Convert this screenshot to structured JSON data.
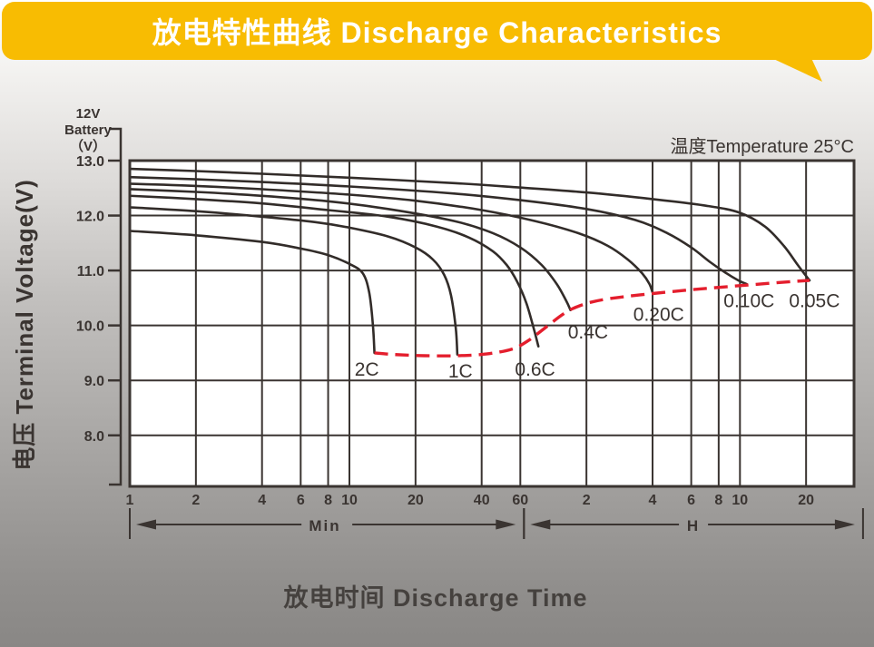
{
  "banner": {
    "title": "放电特性曲线 Discharge Characteristics",
    "color": "#F8BC02",
    "text_color": "#FFFFFF"
  },
  "chart_data": {
    "type": "line",
    "title": "放电特性曲线 Discharge Characteristics",
    "xlabel": "放电时间 Discharge Time",
    "ylabel": "电压 Terminal Voltage(V)",
    "unit_label_lines": [
      "12V",
      "Battery",
      "（V）"
    ],
    "annotation": "温度Temperature 25°C",
    "x_scale": "log",
    "grid": true,
    "legend": "none (labels inline on curves)",
    "xlim_minutes": [
      1,
      1980
    ],
    "ylim": [
      7.1,
      13.0
    ],
    "y_ticks": [
      {
        "v": 13.0,
        "label": "13.0"
      },
      {
        "v": 12.0,
        "label": "12.0"
      },
      {
        "v": 11.0,
        "label": "11.0"
      },
      {
        "v": 10.0,
        "label": "10.0"
      },
      {
        "v": 9.0,
        "label": "9.0"
      },
      {
        "v": 8.0,
        "label": "8.0"
      }
    ],
    "x_ticks": [
      {
        "t": 1,
        "label": "1"
      },
      {
        "t": 2,
        "label": "2"
      },
      {
        "t": 4,
        "label": "4"
      },
      {
        "t": 6,
        "label": "6"
      },
      {
        "t": 8,
        "label": "8"
      },
      {
        "t": 10,
        "label": "10"
      },
      {
        "t": 20,
        "label": "20"
      },
      {
        "t": 40,
        "label": "40"
      },
      {
        "t": 60,
        "label": "60"
      },
      {
        "t": 120,
        "label": "2"
      },
      {
        "t": 240,
        "label": "4"
      },
      {
        "t": 360,
        "label": "6"
      },
      {
        "t": 480,
        "label": "8"
      },
      {
        "t": 600,
        "label": "10"
      },
      {
        "t": 1200,
        "label": "20"
      }
    ],
    "x_unit_ranges": [
      {
        "label": "Min",
        "from_min": 1,
        "to_min": 60
      },
      {
        "label": "H",
        "from_min": 60,
        "to_min": 2180
      }
    ],
    "series": [
      {
        "name": "2C",
        "points": [
          [
            1,
            11.72
          ],
          [
            2,
            11.64
          ],
          [
            4,
            11.52
          ],
          [
            6,
            11.4
          ],
          [
            8,
            11.28
          ],
          [
            10,
            11.12
          ],
          [
            11.5,
            10.95
          ],
          [
            12.3,
            10.6
          ],
          [
            12.8,
            10.0
          ],
          [
            13,
            9.5
          ]
        ]
      },
      {
        "name": "1C",
        "points": [
          [
            1,
            12.15
          ],
          [
            2,
            12.08
          ],
          [
            4,
            11.98
          ],
          [
            7,
            11.88
          ],
          [
            10,
            11.78
          ],
          [
            15,
            11.62
          ],
          [
            20,
            11.42
          ],
          [
            24,
            11.2
          ],
          [
            27,
            10.92
          ],
          [
            29,
            10.55
          ],
          [
            30.5,
            9.95
          ],
          [
            31,
            9.47
          ]
        ]
      },
      {
        "name": "0.6C",
        "points": [
          [
            1,
            12.36
          ],
          [
            2,
            12.3
          ],
          [
            4,
            12.22
          ],
          [
            8,
            12.1
          ],
          [
            15,
            11.98
          ],
          [
            25,
            11.8
          ],
          [
            35,
            11.6
          ],
          [
            45,
            11.35
          ],
          [
            52,
            11.1
          ],
          [
            58,
            10.8
          ],
          [
            64,
            10.4
          ],
          [
            69,
            9.95
          ],
          [
            72.5,
            9.62
          ]
        ]
      },
      {
        "name": "0.4C",
        "points": [
          [
            1,
            12.48
          ],
          [
            2,
            12.43
          ],
          [
            4,
            12.36
          ],
          [
            8,
            12.26
          ],
          [
            15,
            12.12
          ],
          [
            30,
            11.9
          ],
          [
            45,
            11.68
          ],
          [
            60,
            11.42
          ],
          [
            75,
            11.1
          ],
          [
            88,
            10.75
          ],
          [
            97,
            10.45
          ],
          [
            101.5,
            10.28
          ]
        ]
      },
      {
        "name": "0.20C",
        "points": [
          [
            1,
            12.58
          ],
          [
            2,
            12.54
          ],
          [
            4,
            12.48
          ],
          [
            10,
            12.38
          ],
          [
            20,
            12.27
          ],
          [
            40,
            12.1
          ],
          [
            70,
            11.9
          ],
          [
            110,
            11.68
          ],
          [
            150,
            11.45
          ],
          [
            185,
            11.2
          ],
          [
            215,
            10.95
          ],
          [
            232,
            10.76
          ],
          [
            240,
            10.6
          ]
        ]
      },
      {
        "name": "0.10C",
        "points": [
          [
            1,
            12.7
          ],
          [
            2,
            12.66
          ],
          [
            4,
            12.61
          ],
          [
            10,
            12.53
          ],
          [
            30,
            12.4
          ],
          [
            60,
            12.28
          ],
          [
            120,
            12.12
          ],
          [
            200,
            11.92
          ],
          [
            280,
            11.68
          ],
          [
            360,
            11.42
          ],
          [
            440,
            11.15
          ],
          [
            520,
            10.95
          ],
          [
            590,
            10.82
          ],
          [
            645,
            10.75
          ]
        ]
      },
      {
        "name": "0.05C",
        "points": [
          [
            1,
            12.85
          ],
          [
            2,
            12.81
          ],
          [
            4,
            12.76
          ],
          [
            10,
            12.69
          ],
          [
            30,
            12.59
          ],
          [
            60,
            12.51
          ],
          [
            120,
            12.42
          ],
          [
            240,
            12.3
          ],
          [
            420,
            12.18
          ],
          [
            600,
            12.05
          ],
          [
            780,
            11.8
          ],
          [
            950,
            11.45
          ],
          [
            1100,
            11.1
          ],
          [
            1200,
            10.9
          ],
          [
            1245,
            10.82
          ]
        ]
      }
    ],
    "cutoff_curve": {
      "name": "discharge-cutoff-voltage",
      "style": "dashed",
      "points": [
        [
          13,
          9.5
        ],
        [
          16,
          9.47
        ],
        [
          22,
          9.45
        ],
        [
          31,
          9.45
        ],
        [
          42,
          9.48
        ],
        [
          55,
          9.57
        ],
        [
          65,
          9.72
        ],
        [
          78,
          9.96
        ],
        [
          92,
          10.18
        ],
        [
          103,
          10.3
        ],
        [
          125,
          10.42
        ],
        [
          160,
          10.5
        ],
        [
          240,
          10.58
        ],
        [
          360,
          10.65
        ],
        [
          540,
          10.71
        ],
        [
          780,
          10.76
        ],
        [
          1050,
          10.8
        ],
        [
          1245,
          10.82
        ]
      ]
    },
    "series_labels": [
      {
        "text": "2C",
        "t": 12,
        "v": 9.2
      },
      {
        "text": "1C",
        "t": 32,
        "v": 9.17
      },
      {
        "text": "0.6C",
        "t": 70,
        "v": 9.2
      },
      {
        "text": "0.4C",
        "t": 122,
        "v": 9.88
      },
      {
        "text": "0.20C",
        "t": 256,
        "v": 10.2
      },
      {
        "text": "0.10C",
        "t": 660,
        "v": 10.45
      },
      {
        "text": "0.05C",
        "t": 1310,
        "v": 10.45
      }
    ],
    "colors": {
      "banner": "#F8BC02",
      "curve": "#322C29",
      "grid": "#3A3431",
      "text": "#3A3431",
      "cutoff": "#E41E2D",
      "plot_bg": "#FFFFFF"
    }
  }
}
